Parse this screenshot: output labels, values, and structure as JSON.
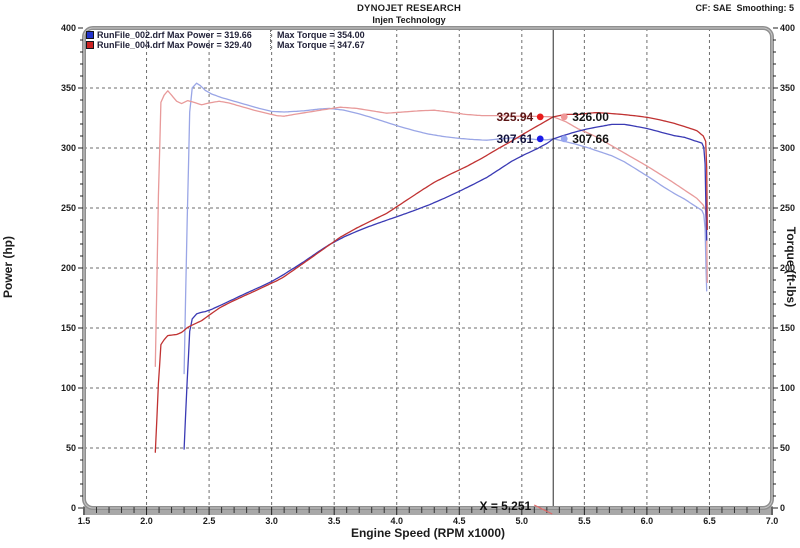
{
  "header": {
    "title": "DYNOJET RESEARCH",
    "subtitle": "Injen Technology",
    "correction": "CF: SAE  Smoothing: 5"
  },
  "legend": {
    "rows": [
      {
        "file": "RunFile_002.drf",
        "max_power_label": "Max Power = 319.66",
        "max_torque_label": "Max Torque = 354.00",
        "swatch_color": "#2233cc"
      },
      {
        "file": "RunFile_004.drf",
        "max_power_label": "Max Power = 329.40",
        "max_torque_label": "Max Torque = 347.67",
        "swatch_color": "#cc2222"
      }
    ]
  },
  "axes": {
    "x": {
      "title": "Engine Speed (RPM x1000)",
      "min": 1.5,
      "max": 7.0,
      "major_step": 0.5,
      "minor_step": 0.1,
      "tick_labels": [
        "1.5",
        "2.0",
        "2.5",
        "3.0",
        "3.5",
        "4.0",
        "4.5",
        "5.0",
        "5.5",
        "6.0",
        "6.5",
        "7.0"
      ]
    },
    "y_left": {
      "title": "Power (hp)",
      "min": 0,
      "max": 400,
      "major_step": 50,
      "minor_step": 10,
      "tick_labels": [
        "400",
        "350",
        "300",
        "250",
        "200",
        "150",
        "100",
        "50",
        "0"
      ]
    },
    "y_right": {
      "title": "Torque (ft-lbs)",
      "min": 0,
      "max": 400,
      "major_step": 50,
      "minor_step": 10,
      "tick_labels": [
        "400",
        "350",
        "300",
        "250",
        "200",
        "150",
        "100",
        "50",
        "0"
      ]
    }
  },
  "cursor": {
    "x_value": 5.251,
    "label": "X = 5.251",
    "readouts": [
      {
        "text": "325.94",
        "value": 325.94,
        "side": "left",
        "series": "run004_power",
        "text_color": "#5a1414",
        "dot_color": "#e81c1c"
      },
      {
        "text": "326.00",
        "value": 326.0,
        "side": "right",
        "series": "run004_torque",
        "text_color": "#141414",
        "dot_color": "#f09898"
      },
      {
        "text": "307.61",
        "value": 307.61,
        "side": "left",
        "series": "run002_power",
        "text_color": "#14143c",
        "dot_color": "#1c1ce8"
      },
      {
        "text": "307.66",
        "value": 307.66,
        "side": "right",
        "series": "run002_torque",
        "text_color": "#141414",
        "dot_color": "#98a6f0"
      }
    ]
  },
  "chart_data": {
    "type": "line",
    "title": "DYNOJET RESEARCH — Injen Technology",
    "xlabel": "Engine Speed (RPM x1000)",
    "ylabel_left": "Power (hp)",
    "ylabel_right": "Torque (ft-lbs)",
    "xlim": [
      1.5,
      7.0
    ],
    "ylim": [
      0,
      400
    ],
    "grid": "dashed, every 0.5 RPM and every 50 units",
    "legend_position": "top-left",
    "power_formula": "hp = ftlb * rpm_x1000 / 5.252",
    "series": [
      {
        "id": "run002_torque",
        "run": "RunFile_002.drf",
        "kind": "torque",
        "color": "#9aa6e6",
        "max": 354.0,
        "points": [
          [
            2.3,
            112
          ],
          [
            2.325,
            240
          ],
          [
            2.345,
            330
          ],
          [
            2.365,
            350
          ],
          [
            2.4,
            354.0
          ],
          [
            2.43,
            352
          ],
          [
            2.47,
            348
          ],
          [
            2.52,
            345
          ],
          [
            2.6,
            342
          ],
          [
            2.7,
            339
          ],
          [
            2.8,
            336
          ],
          [
            2.9,
            333
          ],
          [
            3.0,
            330.5
          ],
          [
            3.1,
            330
          ],
          [
            3.18,
            330.5
          ],
          [
            3.26,
            331
          ],
          [
            3.38,
            332.5
          ],
          [
            3.46,
            333
          ],
          [
            3.58,
            331.5
          ],
          [
            3.68,
            329
          ],
          [
            3.78,
            326
          ],
          [
            3.9,
            322
          ],
          [
            4.02,
            318
          ],
          [
            4.14,
            314.5
          ],
          [
            4.26,
            311.5
          ],
          [
            4.38,
            309.5
          ],
          [
            4.5,
            308
          ],
          [
            4.62,
            307
          ],
          [
            4.72,
            306.5
          ],
          [
            4.82,
            307.5
          ],
          [
            4.92,
            308.5
          ],
          [
            5.02,
            308
          ],
          [
            5.12,
            307
          ],
          [
            5.2,
            306.8
          ],
          [
            5.251,
            307.66
          ],
          [
            5.32,
            306
          ],
          [
            5.42,
            303.5
          ],
          [
            5.52,
            300.5
          ],
          [
            5.62,
            297
          ],
          [
            5.72,
            293.5
          ],
          [
            5.82,
            288.5
          ],
          [
            5.92,
            282
          ],
          [
            6.02,
            275.5
          ],
          [
            6.12,
            268.5
          ],
          [
            6.22,
            262
          ],
          [
            6.3,
            257.5
          ],
          [
            6.38,
            252
          ],
          [
            6.44,
            248
          ],
          [
            6.455,
            244.5
          ],
          [
            6.465,
            233
          ],
          [
            6.472,
            200
          ],
          [
            6.478,
            181
          ]
        ]
      },
      {
        "id": "run004_torque",
        "run": "RunFile_004.drf",
        "kind": "torque",
        "color": "#e89a9a",
        "max": 347.67,
        "points": [
          [
            2.07,
            118
          ],
          [
            2.095,
            260
          ],
          [
            2.115,
            338
          ],
          [
            2.14,
            344
          ],
          [
            2.17,
            347.67
          ],
          [
            2.2,
            344
          ],
          [
            2.24,
            339
          ],
          [
            2.28,
            337
          ],
          [
            2.33,
            339.5
          ],
          [
            2.38,
            338
          ],
          [
            2.44,
            336
          ],
          [
            2.5,
            337.5
          ],
          [
            2.58,
            339
          ],
          [
            2.66,
            337.5
          ],
          [
            2.76,
            334.5
          ],
          [
            2.86,
            331.5
          ],
          [
            2.96,
            329
          ],
          [
            3.04,
            327
          ],
          [
            3.1,
            326.5
          ],
          [
            3.18,
            328
          ],
          [
            3.3,
            330
          ],
          [
            3.42,
            332
          ],
          [
            3.55,
            334
          ],
          [
            3.68,
            333
          ],
          [
            3.8,
            331
          ],
          [
            3.92,
            329
          ],
          [
            4.05,
            330
          ],
          [
            4.18,
            331
          ],
          [
            4.3,
            331.5
          ],
          [
            4.42,
            330
          ],
          [
            4.55,
            328
          ],
          [
            4.68,
            327
          ],
          [
            4.8,
            327
          ],
          [
            4.92,
            326.5
          ],
          [
            5.05,
            326.5
          ],
          [
            5.15,
            326.2
          ],
          [
            5.251,
            326.0
          ],
          [
            5.35,
            322
          ],
          [
            5.45,
            316
          ],
          [
            5.55,
            311.5
          ],
          [
            5.6,
            309
          ],
          [
            5.7,
            303
          ],
          [
            5.8,
            297
          ],
          [
            5.9,
            291
          ],
          [
            6.0,
            285
          ],
          [
            6.1,
            278.5
          ],
          [
            6.2,
            272
          ],
          [
            6.3,
            265
          ],
          [
            6.4,
            258
          ],
          [
            6.45,
            252.5
          ],
          [
            6.47,
            248
          ],
          [
            6.478,
            230
          ],
          [
            6.483,
            188
          ]
        ]
      },
      {
        "id": "run002_power",
        "run": "RunFile_002.drf",
        "kind": "power",
        "color": "#3a3ab4",
        "max": 319.66,
        "derived_from": "run002_torque"
      },
      {
        "id": "run004_power",
        "run": "RunFile_004.drf",
        "kind": "power",
        "color": "#c03232",
        "max": 329.4,
        "derived_from": "run004_torque"
      }
    ]
  }
}
